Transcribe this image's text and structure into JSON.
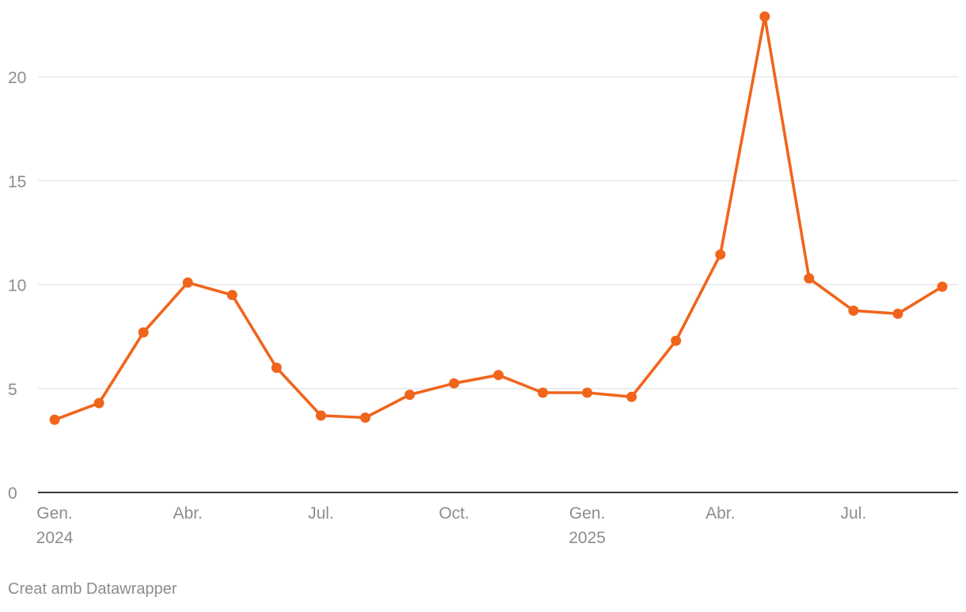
{
  "chart_data": {
    "type": "line",
    "title": "",
    "xlabel": "",
    "ylabel": "",
    "x": [
      "2024-01",
      "2024-02",
      "2024-03",
      "2024-04",
      "2024-05",
      "2024-06",
      "2024-07",
      "2024-08",
      "2024-09",
      "2024-10",
      "2024-11",
      "2024-12",
      "2025-01",
      "2025-02",
      "2025-03",
      "2025-04",
      "2025-05",
      "2025-06",
      "2025-07",
      "2025-08",
      "2025-09"
    ],
    "series": [
      {
        "values": [
          3.5,
          4.3,
          7.7,
          10.1,
          9.5,
          6.0,
          3.7,
          3.6,
          4.7,
          5.25,
          5.65,
          4.8,
          4.8,
          4.6,
          7.3,
          11.45,
          22.9,
          10.3,
          8.75,
          8.6,
          9.9
        ]
      }
    ],
    "ylim": [
      0,
      23
    ],
    "y_ticks": [
      {
        "value": 0,
        "label": "0"
      },
      {
        "value": 5,
        "label": "5"
      },
      {
        "value": 10,
        "label": "10"
      },
      {
        "value": 15,
        "label": "15"
      },
      {
        "value": 20,
        "label": "20"
      }
    ],
    "x_ticks": [
      {
        "index": 0,
        "label": "Gen.",
        "sublabel": "2024"
      },
      {
        "index": 3,
        "label": "Abr.",
        "sublabel": ""
      },
      {
        "index": 6,
        "label": "Jul.",
        "sublabel": ""
      },
      {
        "index": 9,
        "label": "Oct.",
        "sublabel": ""
      },
      {
        "index": 12,
        "label": "Gen.",
        "sublabel": "2025"
      },
      {
        "index": 15,
        "label": "Abr.",
        "sublabel": ""
      },
      {
        "index": 18,
        "label": "Jul.",
        "sublabel": ""
      }
    ],
    "grid": true,
    "line_color": "#f0651c"
  },
  "footer": {
    "credit": "Creat amb Datawrapper"
  }
}
